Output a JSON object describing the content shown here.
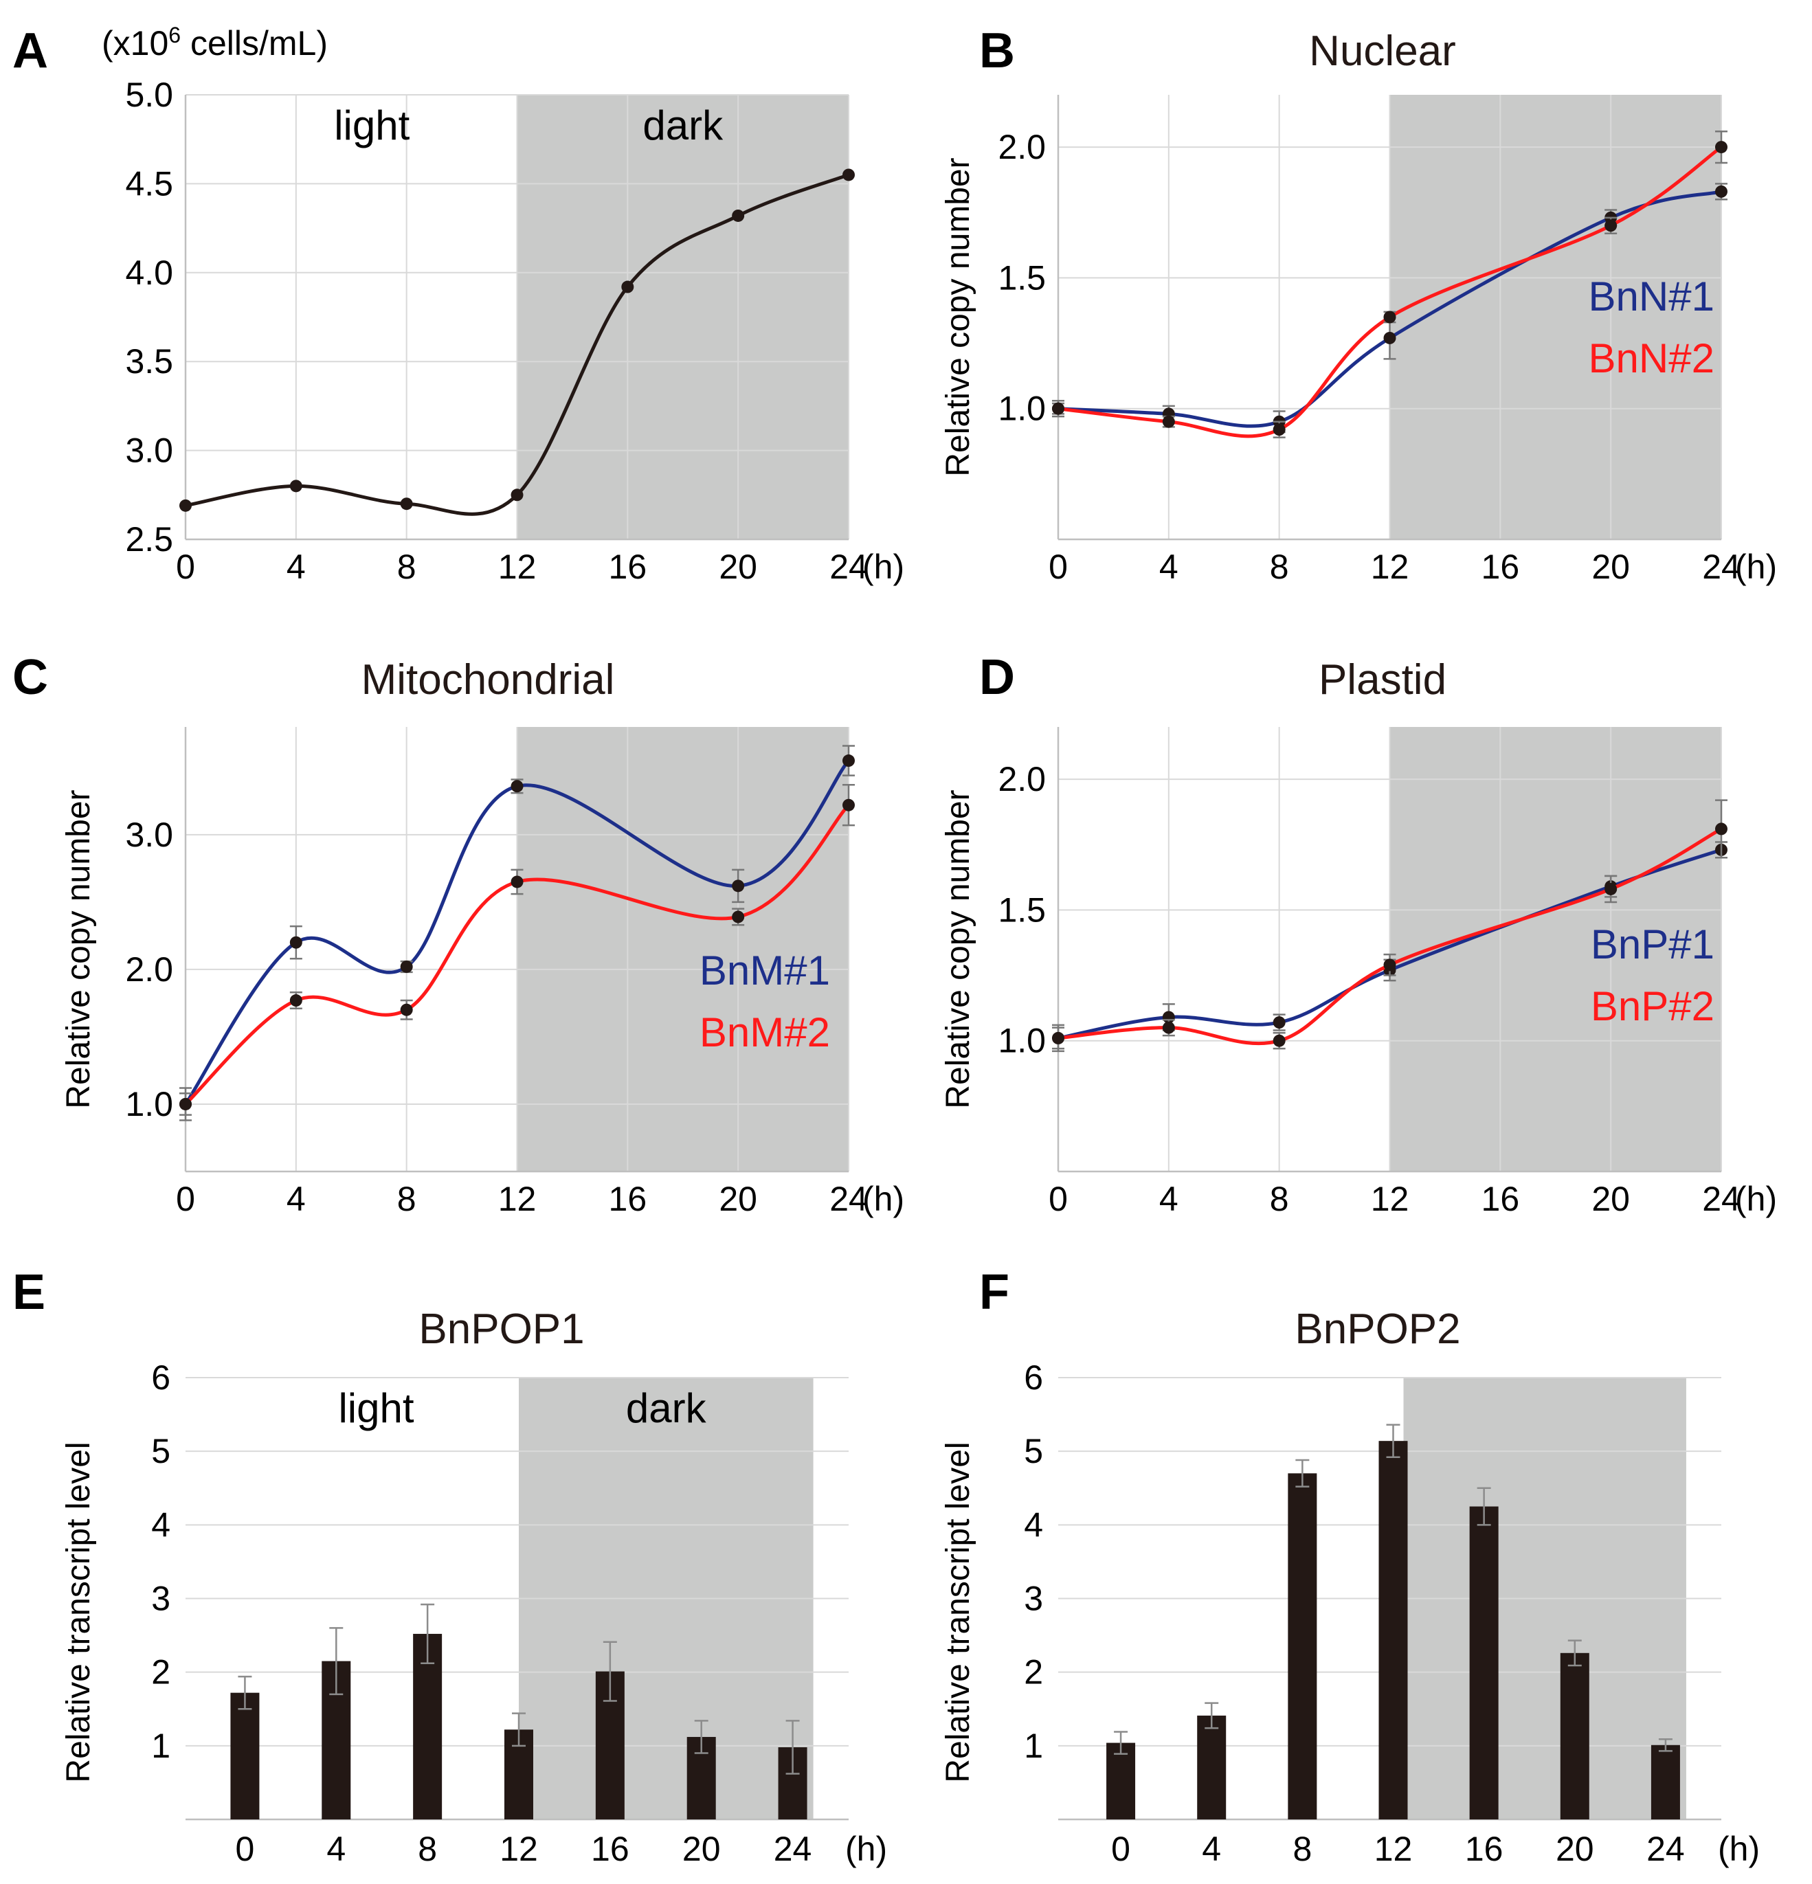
{
  "chart_data": [
    {
      "panel": "A",
      "type": "line",
      "title": "",
      "unit_label_prefix": "(x10",
      "unit_label_exp": "6",
      "unit_label_suffix": " cells/mL)",
      "x": [
        0,
        4,
        8,
        12,
        16,
        20,
        24
      ],
      "x_ticks": [
        "0",
        "4",
        "8",
        "12",
        "16",
        "20",
        "24"
      ],
      "x_unit": "(h)",
      "y_ticks": [
        "2.5",
        "3.0",
        "3.5",
        "4.0",
        "4.5",
        "5.0"
      ],
      "ylim": [
        2.5,
        5.0
      ],
      "dark_start": 12,
      "phase_labels": [
        "light",
        "dark"
      ],
      "series": [
        {
          "name": "cells",
          "color": "#231815",
          "values": [
            2.69,
            2.8,
            2.7,
            2.75,
            3.92,
            4.32,
            4.55
          ],
          "errors": []
        }
      ]
    },
    {
      "panel": "B",
      "type": "line",
      "title": "Nuclear",
      "ylabel": "Relative copy number",
      "x": [
        0,
        4,
        8,
        12,
        20,
        24
      ],
      "x_ticks": [
        "0",
        "4",
        "8",
        "12",
        "16",
        "20",
        "24"
      ],
      "x_unit": "(h)",
      "y_ticks": [
        "1.0",
        "1.5",
        "2.0"
      ],
      "ylim": [
        0.5,
        2.2
      ],
      "dark_start": 12,
      "series": [
        {
          "name": "BnN#1",
          "color": "#1d2f8a",
          "values": [
            1.0,
            0.98,
            0.95,
            1.27,
            1.73,
            1.83
          ],
          "errors": [
            0.03,
            0.03,
            0.04,
            0.08,
            0.03,
            0.03
          ]
        },
        {
          "name": "BnN#2",
          "color": "#ff1a1a",
          "values": [
            1.0,
            0.95,
            0.92,
            1.35,
            1.7,
            2.0
          ],
          "errors": [
            0.02,
            0.02,
            0.03,
            0.02,
            0.03,
            0.06
          ]
        }
      ]
    },
    {
      "panel": "C",
      "type": "line",
      "title": "Mitochondrial",
      "ylabel": "Relative copy number",
      "x": [
        0,
        4,
        8,
        12,
        20,
        24
      ],
      "x_ticks": [
        "0",
        "4",
        "8",
        "12",
        "16",
        "20",
        "24"
      ],
      "x_unit": "(h)",
      "y_ticks": [
        "1.0",
        "2.0",
        "3.0"
      ],
      "ylim": [
        0.5,
        3.8
      ],
      "dark_start": 12,
      "series": [
        {
          "name": "BnM#1",
          "color": "#1d2f8a",
          "values": [
            1.0,
            2.2,
            2.02,
            3.36,
            2.62,
            3.55
          ],
          "errors": [
            0.12,
            0.12,
            0.04,
            0.05,
            0.12,
            0.11
          ]
        },
        {
          "name": "BnM#2",
          "color": "#ff1a1a",
          "values": [
            1.0,
            1.77,
            1.7,
            2.65,
            2.39,
            3.22
          ],
          "errors": [
            0.08,
            0.06,
            0.07,
            0.09,
            0.06,
            0.15
          ]
        }
      ]
    },
    {
      "panel": "D",
      "type": "line",
      "title": "Plastid",
      "ylabel": "Relative copy number",
      "x": [
        0,
        4,
        8,
        12,
        20,
        24
      ],
      "x_ticks": [
        "0",
        "4",
        "8",
        "12",
        "16",
        "20",
        "24"
      ],
      "x_unit": "(h)",
      "y_ticks": [
        "1.0",
        "1.5",
        "2.0"
      ],
      "ylim": [
        0.5,
        2.2
      ],
      "dark_start": 12,
      "series": [
        {
          "name": "BnP#1",
          "color": "#1d2f8a",
          "values": [
            1.01,
            1.09,
            1.07,
            1.27,
            1.59,
            1.73
          ],
          "errors": [
            0.05,
            0.05,
            0.03,
            0.04,
            0.04,
            0.03
          ]
        },
        {
          "name": "BnP#2",
          "color": "#ff1a1a",
          "values": [
            1.01,
            1.05,
            1.0,
            1.29,
            1.58,
            1.81
          ],
          "errors": [
            0.04,
            0.03,
            0.03,
            0.04,
            0.05,
            0.11
          ]
        }
      ]
    },
    {
      "panel": "E",
      "type": "bar",
      "title": "BnPOP1",
      "ylabel": "Relative transcript level",
      "categories": [
        "0",
        "4",
        "8",
        "12",
        "16",
        "20",
        "24"
      ],
      "x_unit": "(h)",
      "y_ticks": [
        "1",
        "2",
        "3",
        "4",
        "5",
        "6"
      ],
      "ylim": [
        0,
        6
      ],
      "dark_start_index": 3,
      "phase_labels": [
        "light",
        "dark"
      ],
      "bar_color": "#231815",
      "values": [
        1.72,
        2.15,
        2.52,
        1.22,
        2.01,
        1.12,
        0.98
      ],
      "errors": [
        0.22,
        0.45,
        0.4,
        0.22,
        0.4,
        0.22,
        0.36
      ]
    },
    {
      "panel": "F",
      "type": "bar",
      "title": "BnPOP2",
      "ylabel": "Relative transcript level",
      "categories": [
        "0",
        "4",
        "8",
        "12",
        "16",
        "20",
        "24"
      ],
      "x_unit": "(h)",
      "y_ticks": [
        "1",
        "2",
        "3",
        "4",
        "5",
        "6"
      ],
      "ylim": [
        0,
        6
      ],
      "dark_start_index": 3,
      "phase_labels": [],
      "bar_color": "#231815",
      "values": [
        1.04,
        1.41,
        4.7,
        5.14,
        4.25,
        2.26,
        1.01
      ],
      "errors": [
        0.15,
        0.17,
        0.18,
        0.22,
        0.25,
        0.17,
        0.08
      ]
    }
  ]
}
